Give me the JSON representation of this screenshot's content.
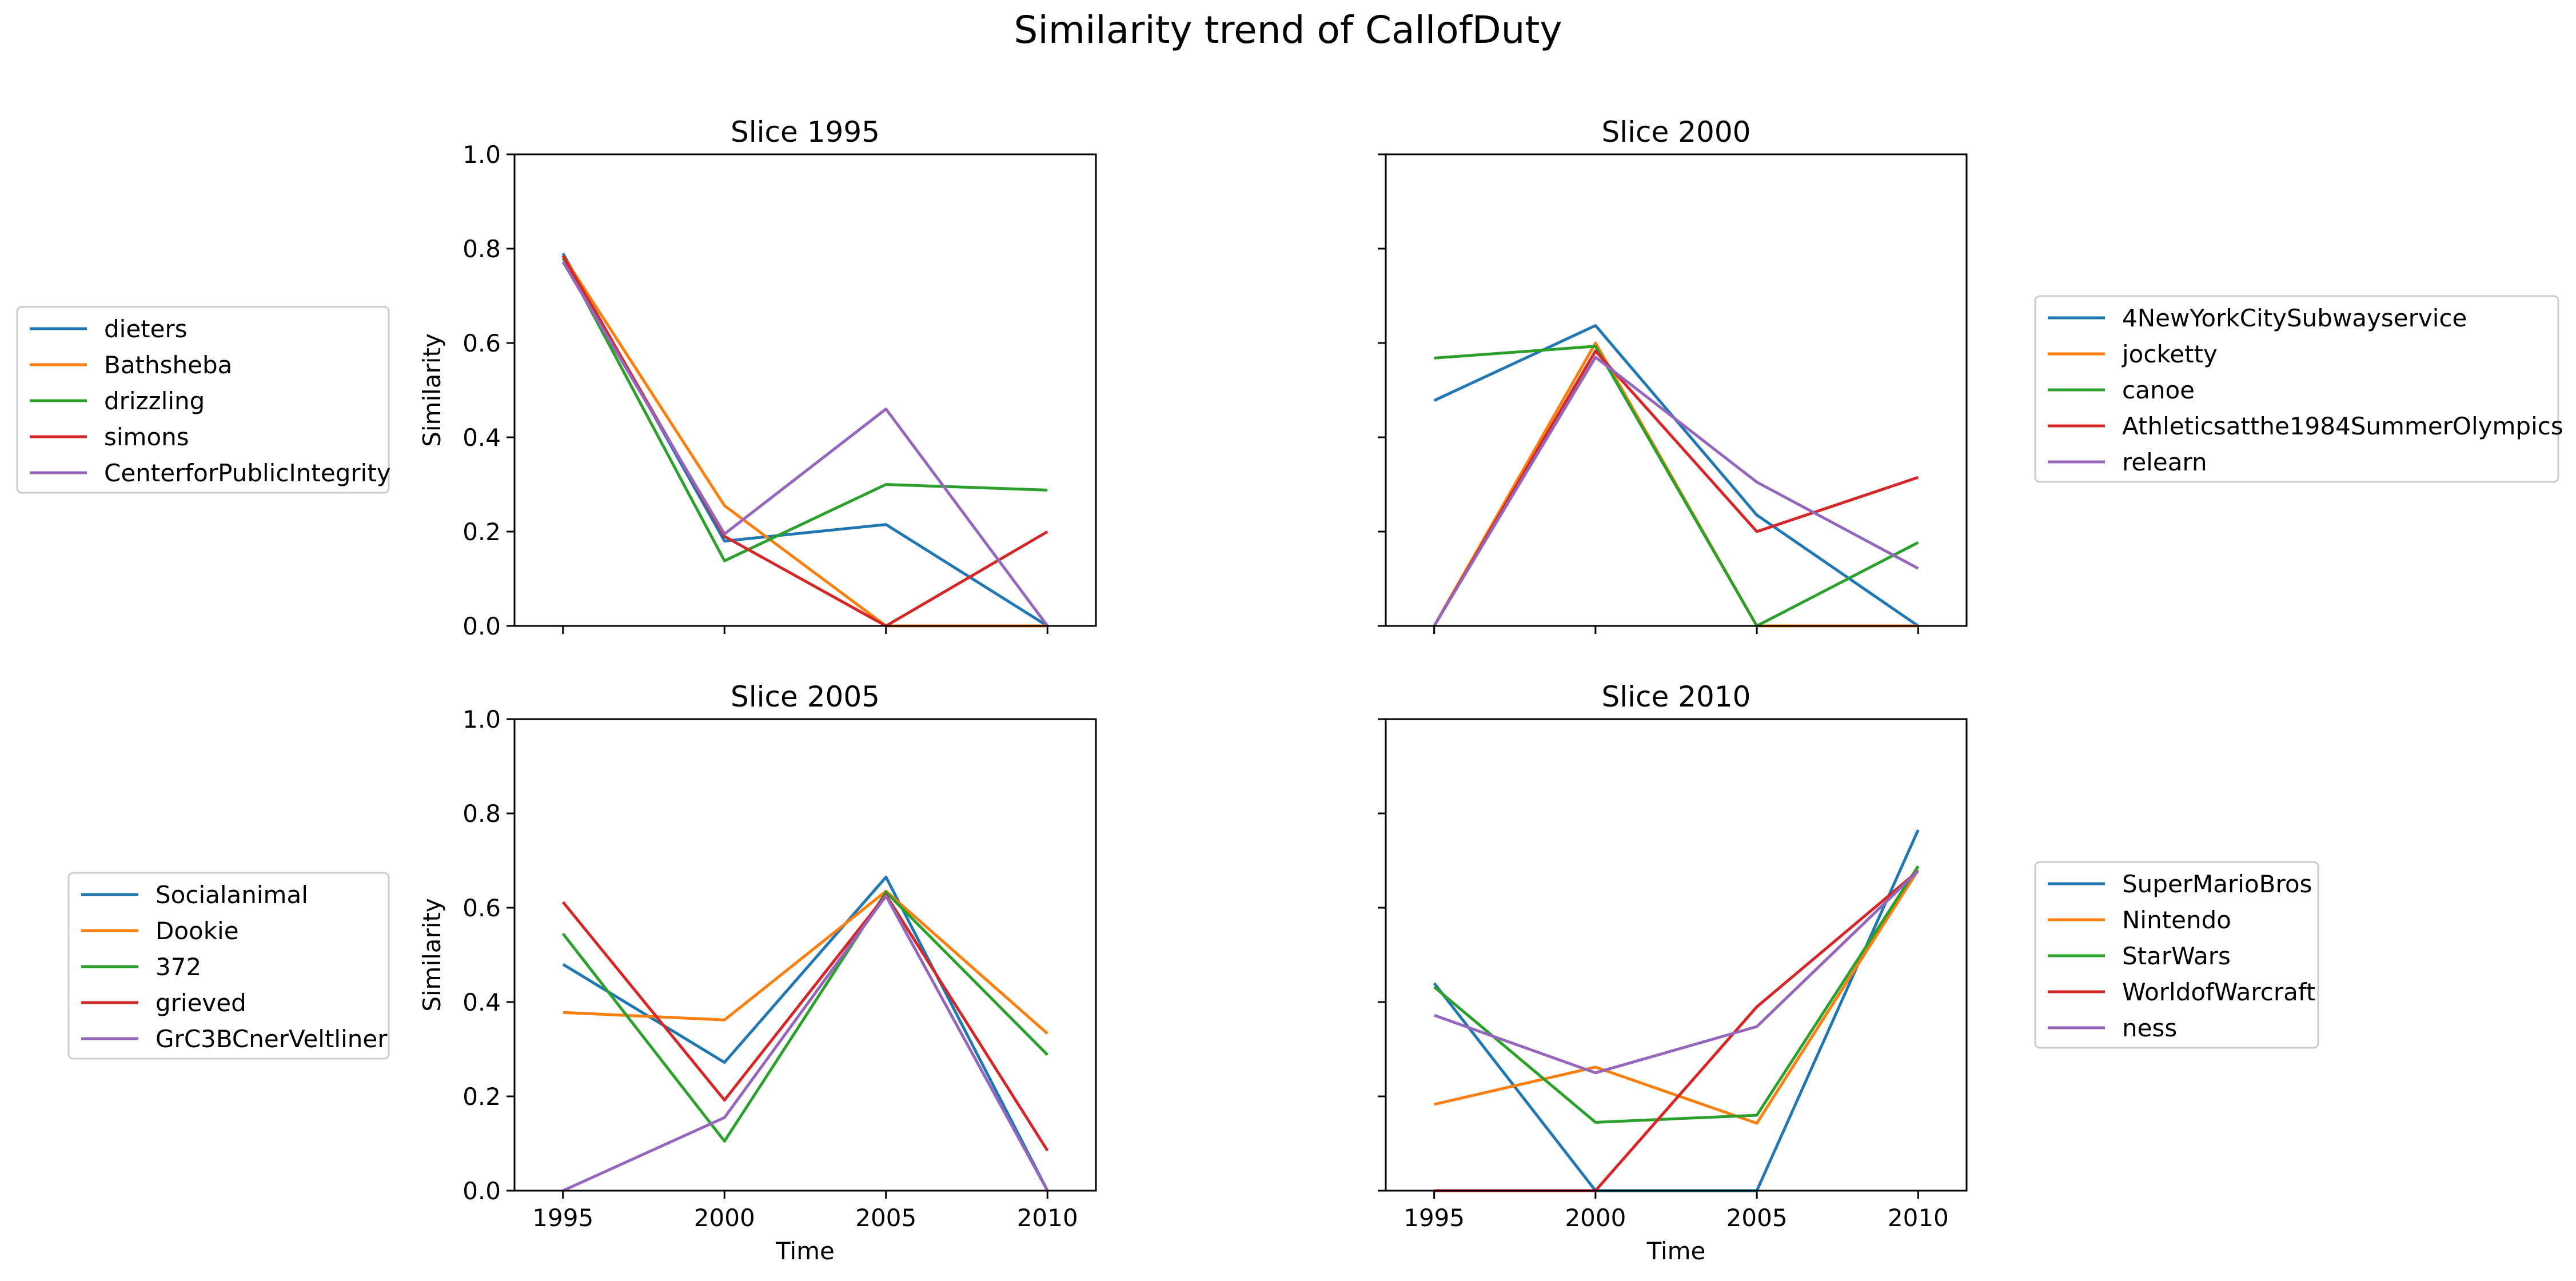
{
  "figure": {
    "title": "Similarity trend of CallofDuty"
  },
  "chart_data": [
    {
      "type": "line",
      "title": "Slice 1995",
      "xlabel": "",
      "ylabel": "Similarity",
      "x": [
        1995,
        2000,
        2005,
        2010
      ],
      "xlim": [
        1993.5,
        2011.5
      ],
      "ylim": [
        0,
        1
      ],
      "xticks": [
        "1995",
        "2000",
        "2005",
        "2010"
      ],
      "yticks": [
        "0.0",
        "0.2",
        "0.4",
        "0.6",
        "0.8",
        "1.0"
      ],
      "grid": false,
      "legend_position": "left",
      "series": [
        {
          "name": "dieters",
          "color": "#1f77b4",
          "values": [
            0.79,
            0.18,
            0.215,
            0.0
          ]
        },
        {
          "name": "Bathsheba",
          "color": "#ff7f0e",
          "values": [
            0.785,
            0.255,
            0.0,
            0.0
          ]
        },
        {
          "name": "drizzling",
          "color": "#2ca02c",
          "values": [
            0.78,
            0.138,
            0.3,
            0.288
          ]
        },
        {
          "name": "simons",
          "color": "#d62728",
          "values": [
            0.785,
            0.19,
            0.0,
            0.2
          ]
        },
        {
          "name": "CenterforPublicIntegrity",
          "color": "#9467bd",
          "values": [
            0.772,
            0.195,
            0.46,
            0.0
          ]
        }
      ]
    },
    {
      "type": "line",
      "title": "Slice 2000",
      "xlabel": "",
      "ylabel": "",
      "x": [
        1995,
        2000,
        2005,
        2010
      ],
      "xlim": [
        1993.5,
        2011.5
      ],
      "ylim": [
        0,
        1
      ],
      "xticks": [
        "1995",
        "2000",
        "2005",
        "2010"
      ],
      "yticks": [
        "0.0",
        "0.2",
        "0.4",
        "0.6",
        "0.8",
        "1.0"
      ],
      "grid": false,
      "legend_position": "right",
      "series": [
        {
          "name": "4NewYorkCitySubwayservice",
          "color": "#1f77b4",
          "values": [
            0.478,
            0.637,
            0.235,
            0.0
          ]
        },
        {
          "name": "jocketty",
          "color": "#ff7f0e",
          "values": [
            0.0,
            0.6,
            0.0,
            0.0
          ]
        },
        {
          "name": "canoe",
          "color": "#2ca02c",
          "values": [
            0.568,
            0.593,
            0.0,
            0.177
          ]
        },
        {
          "name": "Athleticsatthe1984SummerOlympics",
          "color": "#d62728",
          "values": [
            0.0,
            0.583,
            0.2,
            0.315
          ]
        },
        {
          "name": "relearn",
          "color": "#9467bd",
          "values": [
            0.0,
            0.57,
            0.305,
            0.122
          ]
        }
      ]
    },
    {
      "type": "line",
      "title": "Slice 2005",
      "xlabel": "Time",
      "ylabel": "Similarity",
      "x": [
        1995,
        2000,
        2005,
        2010
      ],
      "xlim": [
        1993.5,
        2011.5
      ],
      "ylim": [
        0,
        1
      ],
      "xticks": [
        "1995",
        "2000",
        "2005",
        "2010"
      ],
      "yticks": [
        "0.0",
        "0.2",
        "0.4",
        "0.6",
        "0.8",
        "1.0"
      ],
      "grid": false,
      "legend_position": "left",
      "series": [
        {
          "name": "Socialanimal",
          "color": "#1f77b4",
          "values": [
            0.48,
            0.272,
            0.665,
            0.0
          ]
        },
        {
          "name": "Dookie",
          "color": "#ff7f0e",
          "values": [
            0.378,
            0.362,
            0.635,
            0.333
          ]
        },
        {
          "name": "372",
          "color": "#2ca02c",
          "values": [
            0.545,
            0.105,
            0.633,
            0.288
          ]
        },
        {
          "name": "grieved",
          "color": "#d62728",
          "values": [
            0.612,
            0.192,
            0.627,
            0.085
          ]
        },
        {
          "name": "GrC3BCnerVeltliner",
          "color": "#9467bd",
          "values": [
            0.0,
            0.155,
            0.625,
            0.0
          ]
        }
      ]
    },
    {
      "type": "line",
      "title": "Slice 2010",
      "xlabel": "Time",
      "ylabel": "",
      "x": [
        1995,
        2000,
        2005,
        2010
      ],
      "xlim": [
        1993.5,
        2011.5
      ],
      "ylim": [
        0,
        1
      ],
      "xticks": [
        "1995",
        "2000",
        "2005",
        "2010"
      ],
      "yticks": [
        "0.0",
        "0.2",
        "0.4",
        "0.6",
        "0.8",
        "1.0"
      ],
      "grid": false,
      "legend_position": "right",
      "series": [
        {
          "name": "SuperMarioBros",
          "color": "#1f77b4",
          "values": [
            0.44,
            0.0,
            0.0,
            0.765
          ]
        },
        {
          "name": "Nintendo",
          "color": "#ff7f0e",
          "values": [
            0.183,
            0.262,
            0.143,
            0.68
          ]
        },
        {
          "name": "StarWars",
          "color": "#2ca02c",
          "values": [
            0.432,
            0.145,
            0.16,
            0.688
          ]
        },
        {
          "name": "WorldofWarcraft",
          "color": "#d62728",
          "values": [
            0.0,
            0.0,
            0.39,
            0.678
          ]
        },
        {
          "name": "ness",
          "color": "#9467bd",
          "values": [
            0.372,
            0.25,
            0.348,
            0.678
          ]
        }
      ]
    }
  ]
}
